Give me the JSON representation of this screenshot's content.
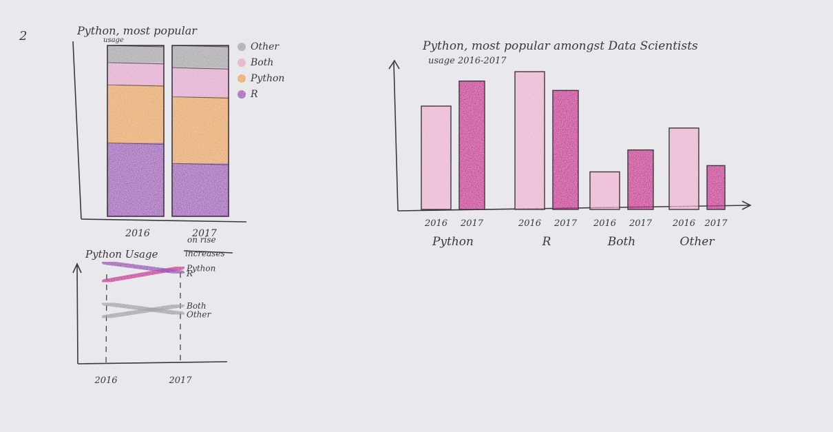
{
  "page_number": "2",
  "colors": {
    "other": "#a3a1a3",
    "both": "#e7a5cf",
    "python": "#eea257",
    "r": "#9754b3",
    "pink_2016": "#f1b5d2",
    "magenta_2017": "#c83a8f",
    "ink": "#3d3540"
  },
  "chart_data": [
    {
      "type": "bar",
      "stacked": true,
      "title": "Python, most popular",
      "ylabel": "usage",
      "categories": [
        "2016",
        "2017"
      ],
      "legend": [
        "Other",
        "Both",
        "Python",
        "R"
      ],
      "legend_position": "right",
      "series": [
        {
          "name": "R",
          "values": [
            43,
            31
          ]
        },
        {
          "name": "Python",
          "values": [
            34,
            39
          ]
        },
        {
          "name": "Both",
          "values": [
            13,
            17
          ]
        },
        {
          "name": "Other",
          "values": [
            10,
            13
          ]
        }
      ],
      "ylim": [
        0,
        100
      ]
    },
    {
      "type": "bar",
      "title": "Python, most popular amongst Data Scientists",
      "subtitle": "usage 2016-2017",
      "groups": [
        "Python",
        "R",
        "Both",
        "Other"
      ],
      "group_ticks": [
        [
          "2016",
          "2017"
        ],
        [
          "2016",
          "2017"
        ],
        [
          "2016",
          "2017"
        ],
        [
          "2016",
          "2017"
        ]
      ],
      "values_2016": [
        33,
        44,
        12,
        26
      ],
      "values_2017": [
        41,
        38,
        19,
        14
      ],
      "ylim": [
        0,
        55
      ]
    },
    {
      "type": "line",
      "title": "Python Usage",
      "title_correction": "on rise",
      "title_struck": "increases",
      "x": [
        "2016",
        "2017"
      ],
      "series": [
        {
          "name": "Python",
          "values": [
            33,
            41
          ]
        },
        {
          "name": "R",
          "values": [
            44,
            38
          ]
        },
        {
          "name": "Both",
          "values": [
            12,
            19
          ]
        },
        {
          "name": "Other",
          "values": [
            20,
            14
          ]
        }
      ],
      "ylim": [
        0,
        50
      ]
    }
  ]
}
